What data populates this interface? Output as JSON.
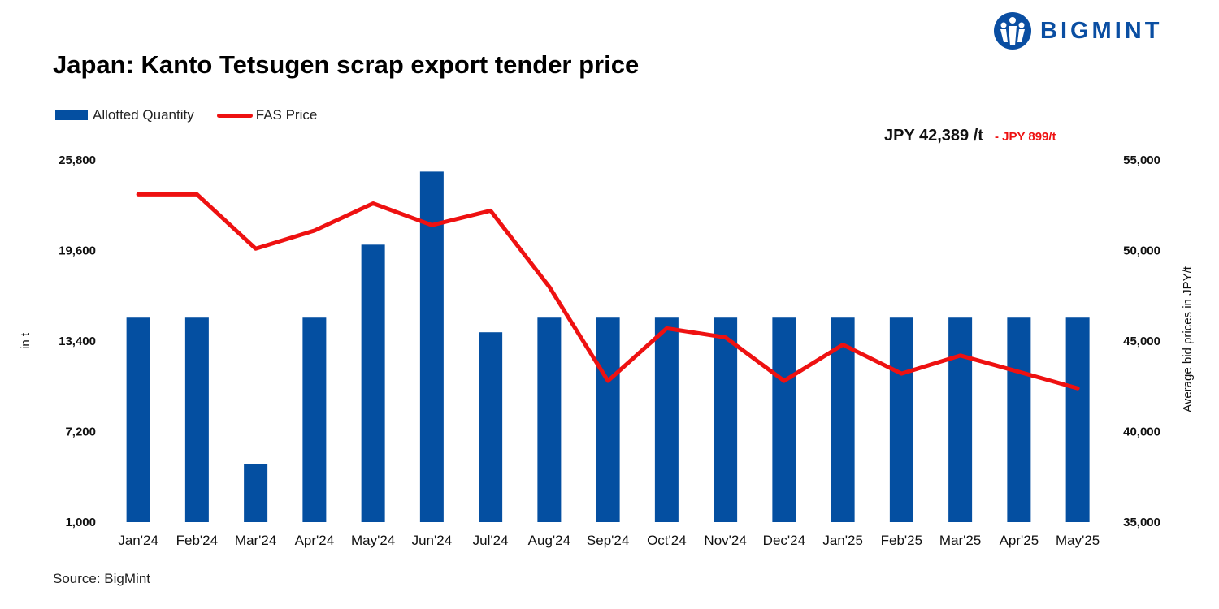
{
  "logo": {
    "text": "BIGMINT"
  },
  "title": "Japan: Kanto Tetsugen scrap export tender price",
  "source": "Source: BigMint",
  "annotation": {
    "price": "JPY 42,389 /t",
    "change": "- JPY 899/t"
  },
  "colors": {
    "bar": "#044fa1",
    "line": "#ee1111",
    "logo": "#0a4ea2"
  },
  "chart_data": {
    "type": "bar",
    "categories": [
      "Jan'24",
      "Feb'24",
      "Mar'24",
      "Apr'24",
      "May'24",
      "Jun'24",
      "Jul'24",
      "Aug'24",
      "Sep'24",
      "Oct'24",
      "Nov'24",
      "Dec'24",
      "Jan'25",
      "Feb'25",
      "Mar'25",
      "Apr'25",
      "May'25"
    ],
    "series": [
      {
        "name": "Allotted Quantity",
        "type": "bar",
        "axis": "left",
        "values": [
          15000,
          15000,
          5000,
          15000,
          20000,
          25000,
          14000,
          15000,
          15000,
          15000,
          15000,
          15000,
          15000,
          15000,
          15000,
          15000,
          15000
        ]
      },
      {
        "name": "FAS Price",
        "type": "line",
        "axis": "right",
        "values": [
          53100,
          53100,
          50100,
          51100,
          52600,
          51400,
          52200,
          48000,
          42800,
          45700,
          45200,
          42800,
          44800,
          43200,
          44200,
          43300,
          42389
        ]
      }
    ],
    "ylabel_left": "in t",
    "ylabel_right": "Average bid prices in JPY/t",
    "yticks_left": [
      "1,000",
      "7,200",
      "13,400",
      "19,600",
      "25,800"
    ],
    "yticks_right": [
      "35,000",
      "40,000",
      "45,000",
      "50,000",
      "55,000"
    ],
    "ylim_left": [
      1000,
      25800
    ],
    "ylim_right": [
      35000,
      55000
    ],
    "grid": false,
    "legend_position": "top-left"
  }
}
